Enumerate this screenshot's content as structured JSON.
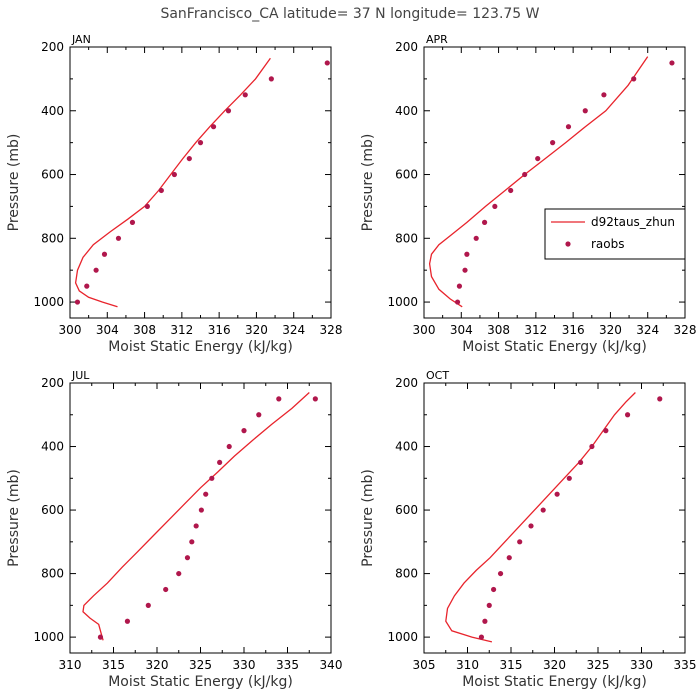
{
  "title": "SanFrancisco_CA  latitude= 37 N longitude= 123.75 W",
  "legend": {
    "line_label": "d92taus_zhun",
    "points_label": "raobs",
    "panel": "APR"
  },
  "colors": {
    "model": "#e8242c",
    "obs": "#b0174c"
  },
  "chart_data": [
    {
      "type": "line",
      "panel": "JAN",
      "xlabel": "Moist Static Energy (kJ/kg)",
      "ylabel": "Pressure (mb)",
      "xlim": [
        300,
        328
      ],
      "ylim": [
        1050,
        200
      ],
      "xticks": [
        300,
        304,
        308,
        312,
        316,
        320,
        324,
        328
      ],
      "yticks": [
        200,
        400,
        600,
        800,
        1000
      ],
      "series": [
        {
          "name": "d92taus_zhun",
          "x": [
            305.1,
            303.5,
            302.0,
            301.0,
            300.6,
            300.8,
            301.4,
            302.5,
            304.3,
            306.2,
            308.0,
            309.5,
            310.8,
            312.1,
            313.5,
            315.0,
            316.6,
            318.3,
            319.9,
            321.5
          ],
          "y": [
            1015,
            1000,
            985,
            965,
            940,
            900,
            860,
            820,
            780,
            740,
            700,
            650,
            600,
            550,
            500,
            450,
            400,
            350,
            300,
            235
          ]
        },
        {
          "name": "raobs",
          "x": [
            300.8,
            301.8,
            302.8,
            303.7,
            305.2,
            306.7,
            308.3,
            309.8,
            311.2,
            312.8,
            314.0,
            315.4,
            317.0,
            318.8,
            321.6,
            327.6
          ],
          "y": [
            1000,
            950,
            900,
            850,
            800,
            750,
            700,
            650,
            600,
            550,
            500,
            450,
            400,
            350,
            300,
            250
          ]
        }
      ]
    },
    {
      "type": "line",
      "panel": "APR",
      "xlabel": "Moist Static Energy (kJ/kg)",
      "ylabel": "Pressure (mb)",
      "xlim": [
        300,
        328
      ],
      "ylim": [
        1050,
        200
      ],
      "xticks": [
        300,
        304,
        308,
        312,
        316,
        320,
        324,
        328
      ],
      "yticks": [
        200,
        400,
        600,
        800,
        1000
      ],
      "series": [
        {
          "name": "d92taus_zhun",
          "x": [
            304.1,
            302.8,
            301.6,
            300.8,
            300.6,
            300.8,
            301.6,
            302.9,
            304.6,
            306.6,
            308.7,
            310.8,
            313.0,
            315.2,
            317.3,
            319.5,
            321.9,
            324.0
          ],
          "y": [
            1015,
            990,
            960,
            920,
            880,
            850,
            820,
            790,
            750,
            700,
            650,
            600,
            550,
            500,
            450,
            400,
            320,
            230
          ]
        },
        {
          "name": "raobs",
          "x": [
            303.6,
            303.8,
            304.4,
            304.6,
            305.6,
            306.5,
            307.6,
            309.3,
            310.8,
            312.2,
            313.8,
            315.5,
            317.3,
            319.3,
            322.5,
            326.6
          ],
          "y": [
            1000,
            950,
            900,
            850,
            800,
            750,
            700,
            650,
            600,
            550,
            500,
            450,
            400,
            350,
            300,
            250
          ]
        }
      ]
    },
    {
      "type": "line",
      "panel": "JUL",
      "xlabel": "Moist Static Energy (kJ/kg)",
      "ylabel": "Pressure (mb)",
      "xlim": [
        310,
        340
      ],
      "ylim": [
        1050,
        200
      ],
      "xticks": [
        310,
        315,
        320,
        325,
        330,
        335,
        340
      ],
      "yticks": [
        200,
        400,
        600,
        800,
        1000
      ],
      "series": [
        {
          "name": "d92taus_zhun",
          "x": [
            313.8,
            313.6,
            313.3,
            312.3,
            311.5,
            311.6,
            312.7,
            314.3,
            316.0,
            317.8,
            319.6,
            321.4,
            323.2,
            325.0,
            327.0,
            328.9,
            331.0,
            333.2,
            335.5,
            337.5
          ],
          "y": [
            1010,
            990,
            960,
            940,
            920,
            900,
            870,
            830,
            780,
            730,
            680,
            630,
            580,
            530,
            480,
            430,
            380,
            330,
            280,
            230
          ]
        },
        {
          "name": "raobs",
          "x": [
            313.5,
            316.6,
            319.0,
            321.0,
            322.5,
            323.5,
            324.0,
            324.5,
            325.1,
            325.6,
            326.3,
            327.2,
            328.3,
            330.0,
            331.7,
            334.0,
            338.2
          ],
          "y": [
            1000,
            950,
            900,
            850,
            800,
            750,
            700,
            650,
            600,
            550,
            500,
            450,
            400,
            350,
            300,
            250,
            250
          ]
        }
      ]
    },
    {
      "type": "line",
      "panel": "OCT",
      "xlabel": "Moist Static Energy (kJ/kg)",
      "ylabel": "Pressure (mb)",
      "xlim": [
        305,
        335
      ],
      "ylim": [
        1050,
        200
      ],
      "xticks": [
        305,
        310,
        315,
        320,
        325,
        330,
        335
      ],
      "yticks": [
        200,
        400,
        600,
        800,
        1000
      ],
      "series": [
        {
          "name": "d92taus_zhun",
          "x": [
            312.8,
            310.5,
            308.2,
            307.5,
            307.7,
            308.5,
            309.6,
            311.0,
            312.6,
            314.3,
            316.0,
            317.7,
            319.4,
            321.1,
            322.8,
            324.3,
            325.6,
            326.9,
            328.2,
            329.3
          ],
          "y": [
            1015,
            1000,
            980,
            950,
            910,
            870,
            830,
            790,
            750,
            700,
            650,
            600,
            550,
            500,
            450,
            400,
            350,
            300,
            260,
            230
          ]
        },
        {
          "name": "raobs",
          "x": [
            311.6,
            312.0,
            312.5,
            313.0,
            313.8,
            314.8,
            316.0,
            317.3,
            318.7,
            320.3,
            321.7,
            323.0,
            324.3,
            325.9,
            328.4,
            332.1
          ],
          "y": [
            1000,
            950,
            900,
            850,
            800,
            750,
            700,
            650,
            600,
            550,
            500,
            450,
            400,
            350,
            300,
            250
          ]
        }
      ]
    }
  ]
}
